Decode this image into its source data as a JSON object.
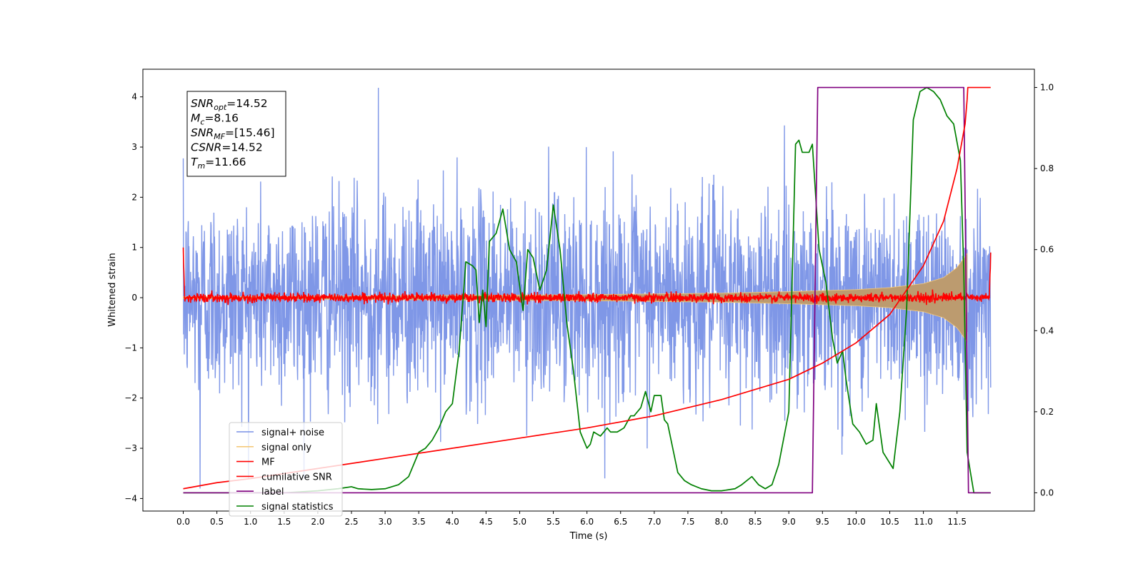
{
  "chart_data": {
    "type": "line",
    "title": "",
    "xlabel": "Time (s)",
    "ylabel": "Whitened strain",
    "y2label": "",
    "xlim": [
      -0.6,
      12.65
    ],
    "ylim": [
      -4.25,
      4.55
    ],
    "y2lim": [
      -0.045,
      1.045
    ],
    "x_ticks": [
      0.0,
      0.5,
      1.0,
      1.5,
      2.0,
      2.5,
      3.0,
      3.5,
      4.0,
      4.5,
      5.0,
      5.5,
      6.0,
      6.5,
      7.0,
      7.5,
      8.0,
      8.5,
      9.0,
      9.5,
      10.0,
      10.5,
      11.0,
      11.5
    ],
    "x_tick_labels": [
      "0.0",
      "0.5",
      "1.0",
      "1.5",
      "2.0",
      "2.5",
      "3.0",
      "3.5",
      "4.0",
      "4.5",
      "5.0",
      "5.5",
      "6.0",
      "6.5",
      "7.0",
      "7.5",
      "8.0",
      "8.5",
      "9.0",
      "9.5",
      "10.0",
      "10.5",
      "11.0",
      "11.5"
    ],
    "y_ticks": [
      -4,
      -3,
      -2,
      -1,
      0,
      1,
      2,
      3,
      4
    ],
    "y_tick_labels": [
      "−4",
      "−3",
      "−2",
      "−1",
      "0",
      "1",
      "2",
      "3",
      "4"
    ],
    "y2_ticks": [
      0.0,
      0.2,
      0.4,
      0.6,
      0.8,
      1.0
    ],
    "y2_tick_labels": [
      "0.0",
      "0.2",
      "0.4",
      "0.6",
      "0.8",
      "1.0"
    ],
    "grid": false,
    "legend_position": "lower-left",
    "legend": [
      {
        "name": "signal+ noise",
        "color": "#7891e6"
      },
      {
        "name": "signal only",
        "color": "#f5c97a"
      },
      {
        "name": "MF",
        "color": "#ff0000"
      },
      {
        "name": "cumilative SNR",
        "color": "#ff0000"
      },
      {
        "name": "label",
        "color": "#800080"
      },
      {
        "name": "signal statistics",
        "color": "#008000"
      }
    ],
    "annotation_box": [
      {
        "symbol": "SNR",
        "sub": "opt",
        "value": "=14.52"
      },
      {
        "symbol": "M",
        "sub": "c",
        "value": "=8.16"
      },
      {
        "symbol": "SNR",
        "sub": "MF",
        "value": "=[15.46]"
      },
      {
        "symbol": "CSNR",
        "sub": "",
        "value": "=14.52"
      },
      {
        "symbol": "T",
        "sub": "m",
        "value": "=11.66"
      }
    ],
    "series": [
      {
        "name": "signal+ noise",
        "axis": "left",
        "color": "#7891e6",
        "x_range": [
          0.0,
          12.0
        ],
        "noise_std": 1.0,
        "typical_envelope": [
          -2.5,
          2.5
        ],
        "peak_max": 4.18,
        "peak_min": -3.8
      },
      {
        "name": "signal only",
        "axis": "left",
        "color": "#f5c97a",
        "x": [
          0.0,
          2.0,
          4.0,
          6.0,
          8.0,
          9.0,
          10.0,
          10.5,
          11.0,
          11.3,
          11.5,
          11.65
        ],
        "amplitude": [
          0.02,
          0.03,
          0.045,
          0.06,
          0.09,
          0.12,
          0.16,
          0.2,
          0.28,
          0.4,
          0.6,
          0.88
        ]
      },
      {
        "name": "MF",
        "axis": "left",
        "color": "#ff0000",
        "x_range": [
          0.0,
          12.0
        ],
        "start_value": 1.0,
        "end_value": 0.9,
        "noise_std": 0.045
      },
      {
        "name": "cumilative SNR",
        "axis": "right",
        "color": "#ff0000",
        "x": [
          0.0,
          0.5,
          1.0,
          2.0,
          3.0,
          4.0,
          5.0,
          6.0,
          7.0,
          8.0,
          9.0,
          9.5,
          10.0,
          10.5,
          11.0,
          11.3,
          11.5,
          11.62,
          11.65,
          11.66,
          12.0
        ],
        "y": [
          0.01,
          0.025,
          0.035,
          0.06,
          0.085,
          0.11,
          0.135,
          0.16,
          0.19,
          0.23,
          0.28,
          0.32,
          0.37,
          0.44,
          0.56,
          0.67,
          0.8,
          0.91,
          0.97,
          1.0,
          1.0
        ]
      },
      {
        "name": "label",
        "axis": "right",
        "color": "#800080",
        "x": [
          0.0,
          9.35,
          9.43,
          11.6,
          11.67,
          12.0
        ],
        "y": [
          0.0,
          0.0,
          1.0,
          1.0,
          0.0,
          0.0
        ]
      },
      {
        "name": "signal statistics",
        "axis": "right",
        "color": "#008000",
        "x": [
          0.0,
          0.5,
          1.0,
          1.5,
          2.0,
          2.3,
          2.5,
          2.6,
          2.8,
          3.0,
          3.2,
          3.35,
          3.45,
          3.5,
          3.6,
          3.7,
          3.8,
          3.9,
          4.0,
          4.1,
          4.2,
          4.3,
          4.35,
          4.4,
          4.45,
          4.5,
          4.55,
          4.65,
          4.75,
          4.85,
          4.95,
          5.05,
          5.12,
          5.2,
          5.3,
          5.4,
          5.5,
          5.6,
          5.7,
          5.8,
          5.9,
          6.0,
          6.05,
          6.1,
          6.2,
          6.3,
          6.35,
          6.45,
          6.55,
          6.65,
          6.7,
          6.8,
          6.87,
          6.95,
          7.0,
          7.1,
          7.15,
          7.2,
          7.35,
          7.45,
          7.55,
          7.7,
          7.85,
          8.0,
          8.2,
          8.3,
          8.45,
          8.5,
          8.55,
          8.65,
          8.75,
          8.85,
          9.0,
          9.1,
          9.15,
          9.2,
          9.3,
          9.35,
          9.45,
          9.55,
          9.65,
          9.72,
          9.8,
          9.85,
          9.95,
          10.05,
          10.15,
          10.25,
          10.3,
          10.4,
          10.55,
          10.65,
          10.75,
          10.85,
          10.95,
          11.05,
          11.15,
          11.25,
          11.35,
          11.45,
          11.55,
          11.6,
          11.65,
          11.75,
          11.85,
          12.0
        ],
        "y": [
          0.0,
          0.0,
          0.0,
          0.0,
          0.005,
          0.01,
          0.015,
          0.01,
          0.008,
          0.01,
          0.02,
          0.04,
          0.08,
          0.1,
          0.11,
          0.13,
          0.16,
          0.2,
          0.22,
          0.35,
          0.57,
          0.56,
          0.55,
          0.42,
          0.5,
          0.41,
          0.62,
          0.64,
          0.7,
          0.6,
          0.57,
          0.45,
          0.6,
          0.58,
          0.5,
          0.55,
          0.71,
          0.6,
          0.42,
          0.3,
          0.15,
          0.11,
          0.12,
          0.15,
          0.14,
          0.16,
          0.15,
          0.15,
          0.16,
          0.19,
          0.19,
          0.21,
          0.25,
          0.2,
          0.24,
          0.24,
          0.18,
          0.17,
          0.05,
          0.03,
          0.02,
          0.01,
          0.005,
          0.005,
          0.01,
          0.02,
          0.04,
          0.03,
          0.02,
          0.01,
          0.02,
          0.07,
          0.2,
          0.86,
          0.87,
          0.84,
          0.84,
          0.86,
          0.6,
          0.52,
          0.38,
          0.32,
          0.35,
          0.28,
          0.17,
          0.15,
          0.12,
          0.13,
          0.22,
          0.1,
          0.06,
          0.2,
          0.45,
          0.92,
          0.99,
          1.0,
          0.99,
          0.97,
          0.93,
          0.91,
          0.82,
          0.55,
          0.1,
          0.0,
          0.0,
          0.0
        ]
      }
    ]
  }
}
